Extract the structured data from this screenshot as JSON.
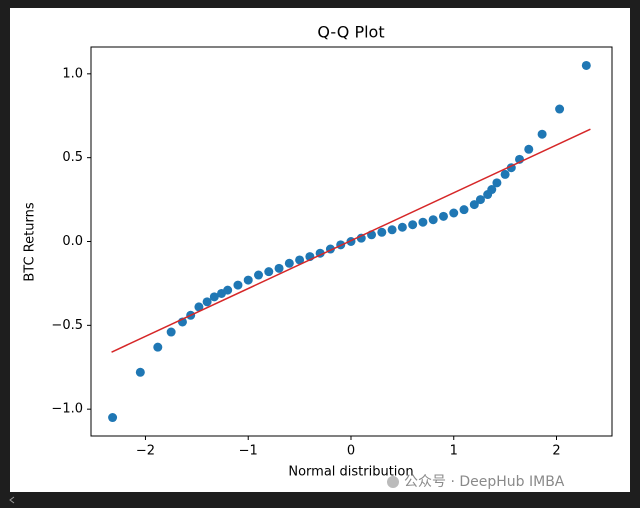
{
  "chart_data": {
    "type": "scatter",
    "title": "Q-Q Plot",
    "x_label": "Normal distribution",
    "y_label": "BTC Returns",
    "xlim": [
      -2.53,
      2.54
    ],
    "ylim": [
      -1.16,
      1.16
    ],
    "xticks": [
      {
        "value": -2,
        "label": "−2"
      },
      {
        "value": -1,
        "label": "−1"
      },
      0,
      1,
      2
    ],
    "yticks": [
      {
        "value": -1,
        "label": "−1.0"
      },
      {
        "value": -0.5,
        "label": "−0.5"
      },
      {
        "value": 0,
        "label": "0.0"
      },
      0.5,
      {
        "value": 1,
        "label": "1.0"
      }
    ],
    "series": [
      {
        "type": "scatter",
        "color": "#1f77b4",
        "x": [
          -2.32,
          -2.05,
          -1.88,
          -1.75,
          -1.64,
          -1.56,
          -1.48,
          -1.4,
          -1.33,
          -1.26,
          -1.2,
          -1.1,
          -1.0,
          -0.9,
          -0.8,
          -0.7,
          -0.6,
          -0.5,
          -0.4,
          -0.3,
          -0.2,
          -0.1,
          0,
          0.1,
          0.2,
          0.3,
          0.4,
          0.5,
          0.6,
          0.7,
          0.8,
          0.9,
          1.0,
          1.1,
          1.2,
          1.26,
          1.33,
          1.37,
          1.42,
          1.5,
          1.56,
          1.64,
          1.73,
          1.86,
          2.03,
          2.29
        ],
        "values": [
          -1.05,
          -0.78,
          -0.63,
          -0.54,
          -0.48,
          -0.44,
          -0.39,
          -0.36,
          -0.33,
          -0.31,
          -0.29,
          -0.26,
          -0.23,
          -0.2,
          -0.18,
          -0.16,
          -0.13,
          -0.11,
          -0.09,
          -0.07,
          -0.045,
          -0.02,
          0,
          0.02,
          0.04,
          0.055,
          0.07,
          0.085,
          0.1,
          0.115,
          0.13,
          0.15,
          0.17,
          0.19,
          0.22,
          0.25,
          0.28,
          0.31,
          0.35,
          0.4,
          0.44,
          0.49,
          0.55,
          0.64,
          0.79,
          1.05
        ]
      },
      {
        "type": "line",
        "color": "#d62728",
        "x": [
          -2.33,
          2.33
        ],
        "values": [
          -0.66,
          0.67
        ]
      }
    ]
  },
  "watermark": "公众号 · DeepHub IMBA"
}
